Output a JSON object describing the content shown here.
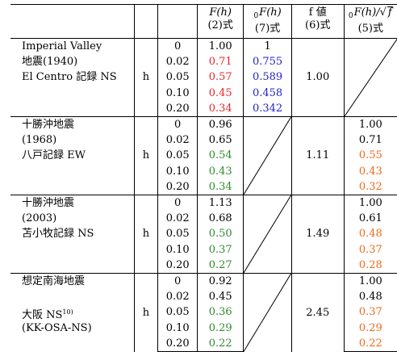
{
  "header": {
    "col_Fh": "F(h)",
    "col_Fh_sub": "(2)式",
    "col_0Fh": "F(h)",
    "col_0Fh_prefix": "0",
    "col_0Fh_sub": "(7)式",
    "col_f": "f 値",
    "col_f_sub": "(6)式",
    "col_ratio_prefix": "0",
    "col_ratio_main": "F(h)/",
    "col_ratio_root": "f",
    "col_ratio_sub": "(5)式"
  },
  "groups": [
    {
      "name_lines": [
        "Imperial Valley",
        "地震(1940)",
        "El Centro 記録 NS"
      ],
      "h_label": "h",
      "h_values": [
        "0",
        "0.02",
        "0.05",
        "0.10",
        "0.20"
      ],
      "Fh": [
        "1.00",
        "0.71",
        "0.57",
        "0.45",
        "0.34"
      ],
      "Fh_colors": [
        "black",
        "red",
        "red",
        "red",
        "red"
      ],
      "F0h": [
        "1",
        "0.755",
        "0.589",
        "0.458",
        "0.342"
      ],
      "F0h_colors": [
        "black",
        "blue",
        "blue",
        "blue",
        "blue"
      ],
      "f_value": "1.00",
      "ratio": []
    },
    {
      "name_lines": [
        "十勝沖地震",
        "(1968)",
        "八戸記録 EW"
      ],
      "h_label": "h",
      "h_values": [
        "0",
        "0.02",
        "0.05",
        "0.10",
        "0.20"
      ],
      "Fh": [
        "0.96",
        "0.65",
        "0.54",
        "0.43",
        "0.34"
      ],
      "Fh_colors": [
        "black",
        "black",
        "green",
        "green",
        "green"
      ],
      "F0h": [],
      "f_value": "1.11",
      "ratio": [
        "1.00",
        "0.71",
        "0.55",
        "0.43",
        "0.32"
      ],
      "ratio_colors": [
        "black",
        "black",
        "orange",
        "orange",
        "orange"
      ]
    },
    {
      "name_lines": [
        "十勝沖地震",
        "(2003)",
        "苫小牧記録 NS"
      ],
      "h_label": "h",
      "h_values": [
        "0",
        "0.02",
        "0.05",
        "0.10",
        "0.20"
      ],
      "Fh": [
        "1.13",
        "0.68",
        "0.50",
        "0.37",
        "0.27"
      ],
      "Fh_colors": [
        "black",
        "black",
        "green",
        "green",
        "green"
      ],
      "F0h": [],
      "f_value": "1.49",
      "ratio": [
        "1.00",
        "0.61",
        "0.48",
        "0.37",
        "0.28"
      ],
      "ratio_colors": [
        "black",
        "black",
        "orange",
        "orange",
        "orange"
      ]
    },
    {
      "name_lines": [
        "想定南海地震",
        "",
        "大阪 NS",
        "(KK-OSA-NS)"
      ],
      "name_ref": "10)",
      "h_label": "h",
      "h_values": [
        "0",
        "0.02",
        "0.05",
        "0.10",
        "0.20"
      ],
      "Fh": [
        "0.92",
        "0.45",
        "0.36",
        "0.29",
        "0.22"
      ],
      "Fh_colors": [
        "black",
        "black",
        "green",
        "green",
        "green"
      ],
      "F0h": [],
      "f_value": "2.45",
      "ratio": [
        "1.00",
        "0.48",
        "0.37",
        "0.29",
        "0.22"
      ],
      "ratio_colors": [
        "black",
        "black",
        "orange",
        "orange",
        "orange"
      ]
    }
  ],
  "colors": {
    "red": "#e8262d",
    "blue": "#2222cc",
    "green": "#2e8b2e",
    "orange": "#ee6a1a"
  }
}
